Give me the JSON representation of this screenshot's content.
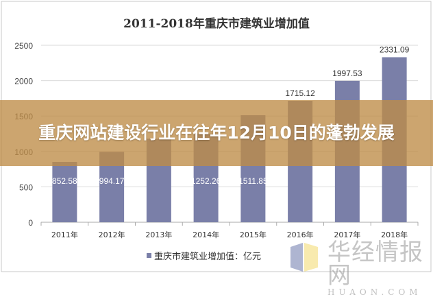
{
  "banner": {
    "title": "重庆网站建设行业在往年12月10日的蓬勃发展"
  },
  "watermark": {
    "cn": "华经情报网",
    "en": "HUAON.COM"
  },
  "chart_data": {
    "type": "bar",
    "title": "2011-2018年重庆市建筑业增加值",
    "categories": [
      "2011年",
      "2012年",
      "2013年",
      "2014年",
      "2015年",
      "2016年",
      "2017年",
      "2018年"
    ],
    "series": [
      {
        "name": "重庆市建筑业增加值：亿元",
        "values": [
          852.58,
          994.17,
          1180,
          1252.26,
          1511.85,
          1715.12,
          1997.53,
          2331.09
        ],
        "labels": [
          "852.58",
          "994.17",
          "",
          "1252.26",
          "1511.85",
          "1715.12",
          "1997.53",
          "2331.09"
        ],
        "color": "#7a7fa8"
      }
    ],
    "ylim": [
      0,
      2500
    ],
    "yticks": [
      0,
      500,
      1000,
      1500,
      2000,
      2500
    ],
    "grid": true,
    "legend": "bottom"
  }
}
